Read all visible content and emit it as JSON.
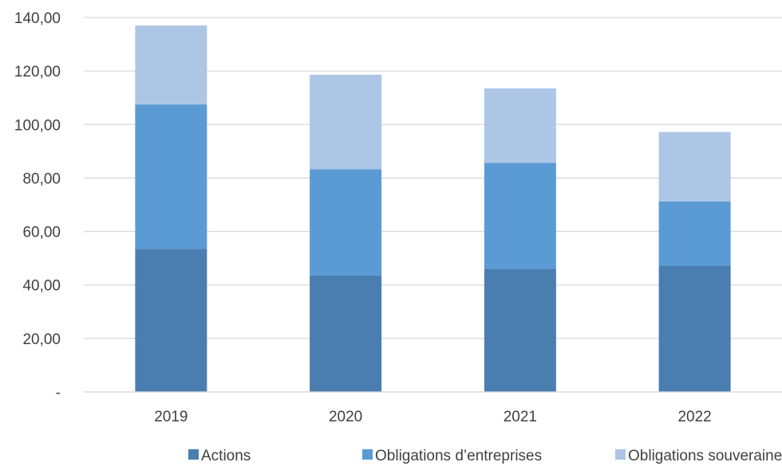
{
  "chart_data": {
    "type": "bar",
    "stacked": true,
    "categories": [
      "2019",
      "2020",
      "2021",
      "2022"
    ],
    "series": [
      {
        "name": "Actions",
        "color": "#4a7eb0",
        "values": [
          53.5,
          43.5,
          46.0,
          47.2
        ]
      },
      {
        "name": "Obligations d’entreprises",
        "color": "#5b9bd5",
        "values": [
          54.0,
          39.8,
          39.7,
          24.0
        ]
      },
      {
        "name": "Obligations souveraines",
        "color": "#adc6e6",
        "values": [
          29.5,
          35.3,
          27.8,
          26.0
        ]
      }
    ],
    "ylim": [
      0,
      140
    ],
    "yticks": [
      {
        "value": 0,
        "label": "-"
      },
      {
        "value": 20,
        "label": "20,00"
      },
      {
        "value": 40,
        "label": "40,00"
      },
      {
        "value": 60,
        "label": "60,00"
      },
      {
        "value": 80,
        "label": "80,00"
      },
      {
        "value": 100,
        "label": "100,00"
      },
      {
        "value": 120,
        "label": "120,00"
      },
      {
        "value": 140,
        "label": "140,00"
      }
    ],
    "grid": true,
    "grid_color": "#d9d9d9",
    "legend_position": "bottom"
  }
}
